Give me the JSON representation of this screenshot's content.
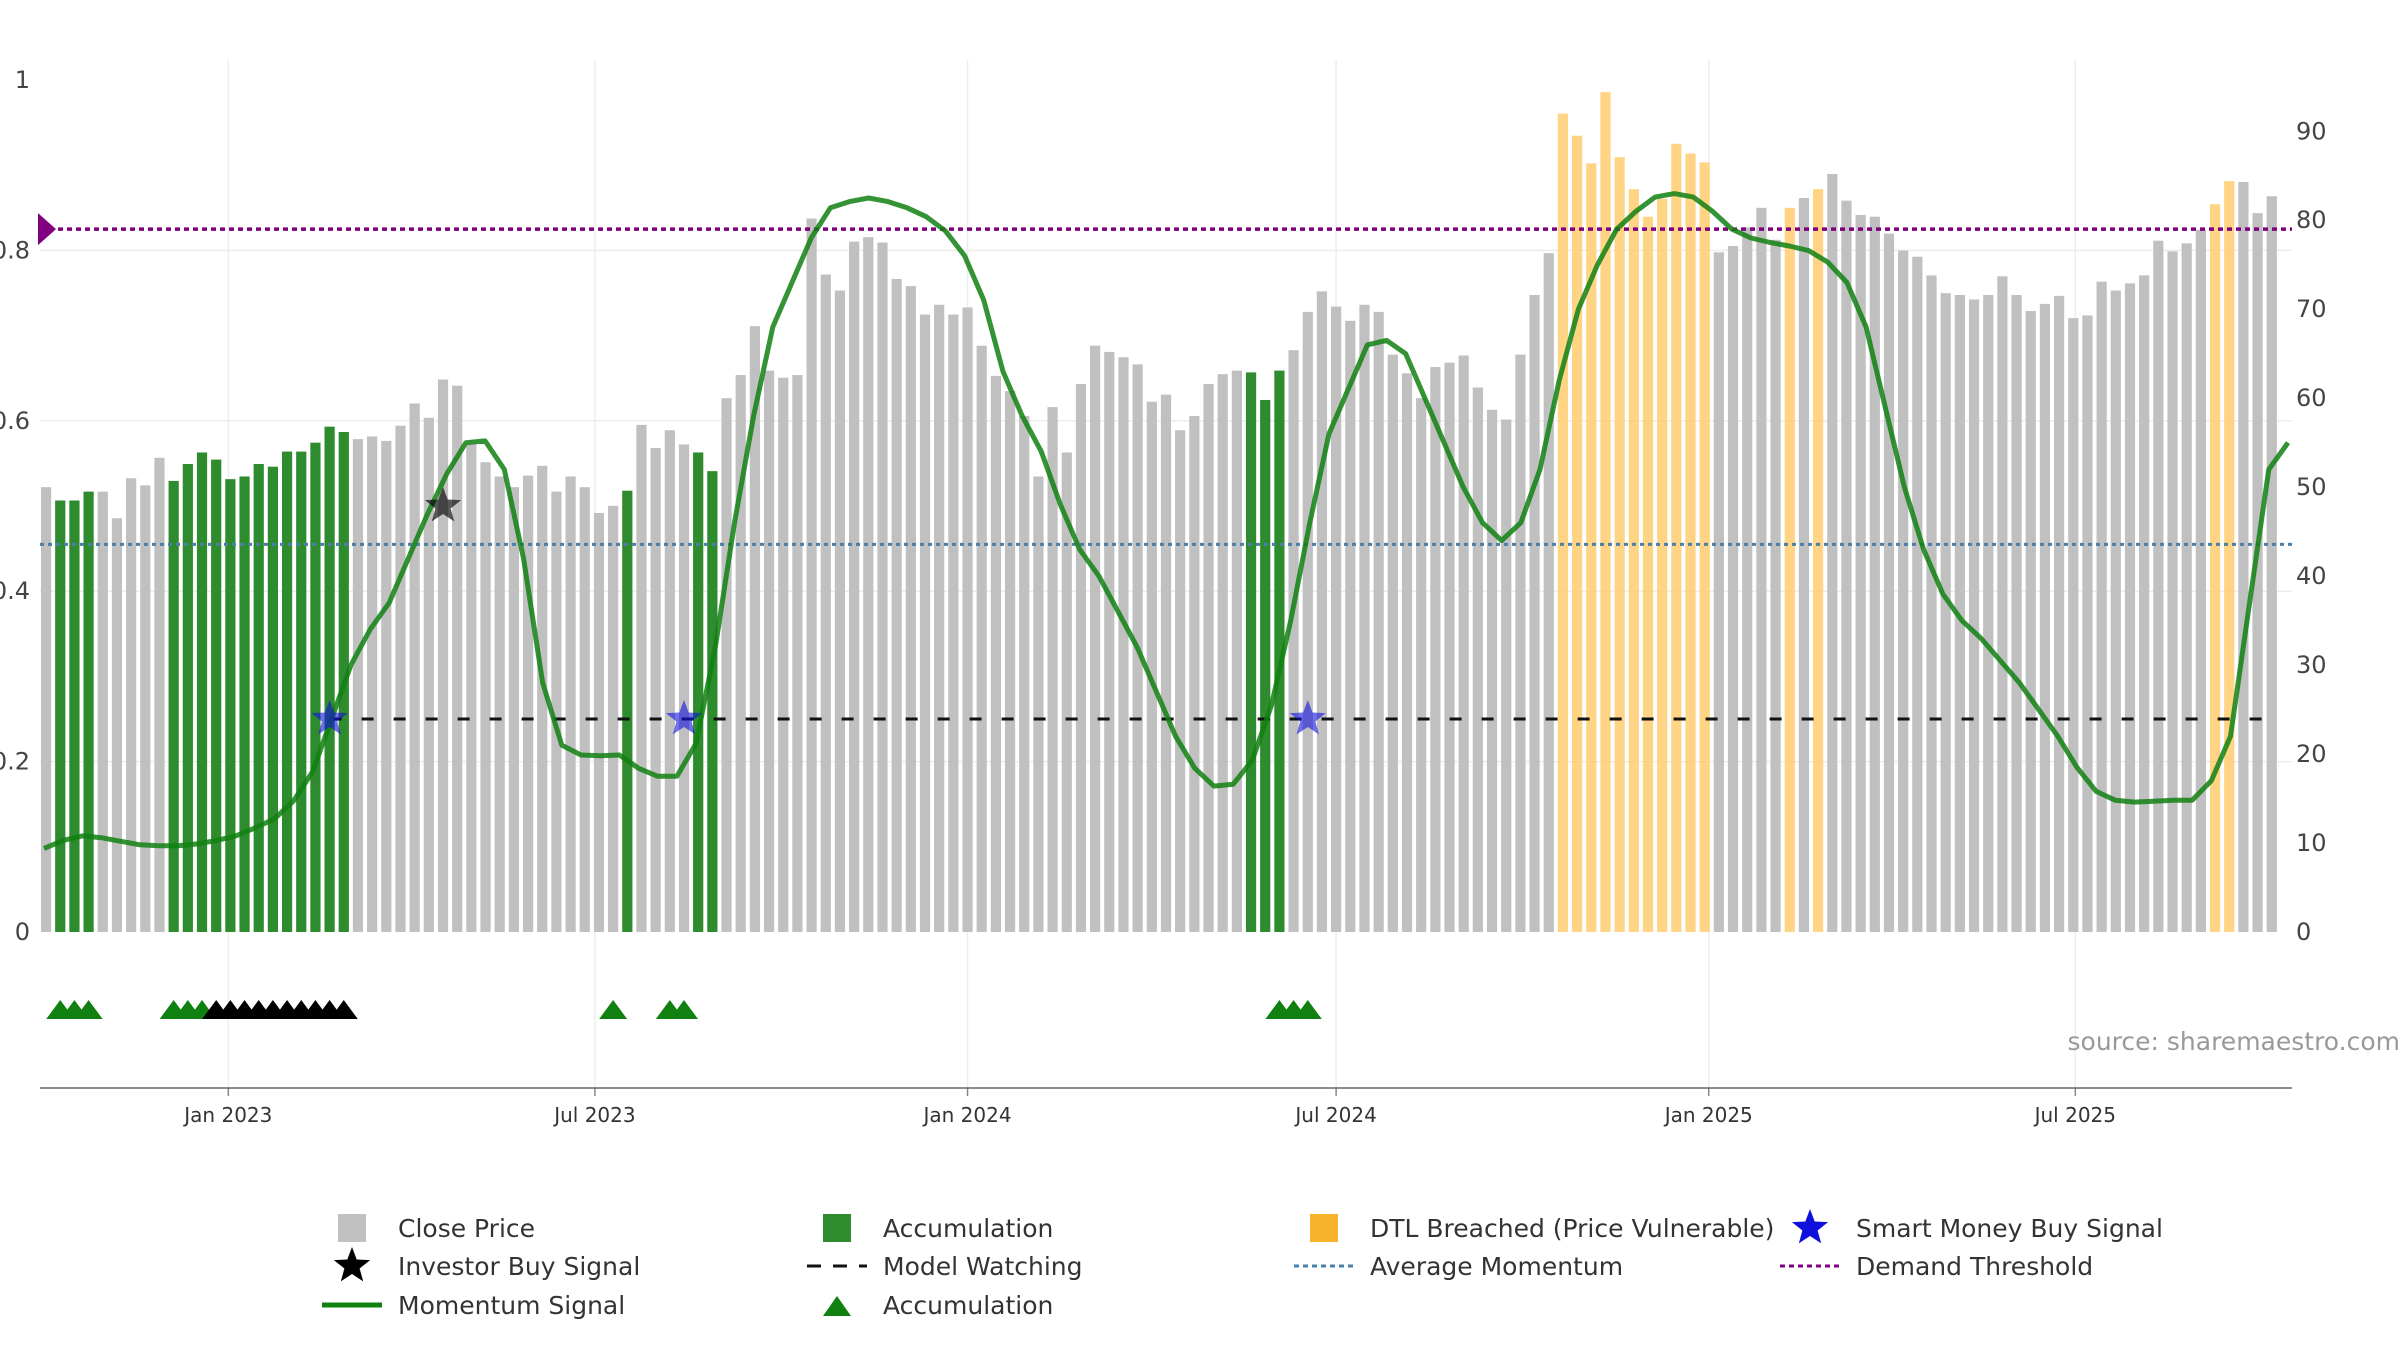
{
  "chart_data": {
    "type": "bar",
    "source_label": "source: sharemaestro.com",
    "x_ticks": [
      "Jan 2023",
      "Jul 2023",
      "Jan 2024",
      "Jul 2024",
      "Jan 2025",
      "Jul 2025"
    ],
    "left_axis": {
      "ylim": [
        0,
        1
      ],
      "ticks": [
        "0",
        "0.2",
        "0.4",
        "0.6",
        "0.8",
        "1"
      ]
    },
    "right_axis": {
      "ylim": [
        0,
        97
      ],
      "ticks": [
        "0",
        "10",
        "20",
        "30",
        "40",
        "50",
        "60",
        "70",
        "80",
        "90"
      ]
    },
    "demand_threshold": 0.825,
    "average_momentum": 0.455,
    "model_watching_level": 0.25,
    "colors": {
      "close_price": "#c0c0c0",
      "accumulation": "#2e8b2e",
      "dtl_breached": "#ffcc70",
      "momentum": "#108010",
      "average_momentum": "#4a7fa7",
      "demand_threshold": "#800080",
      "smart_money": "#1010dd",
      "investor": "#000000",
      "acc_triangle": "#108010"
    },
    "weeks": [
      "2022-10-03",
      "2022-10-10",
      "2022-10-17",
      "2022-10-24",
      "2022-10-31",
      "2022-11-07",
      "2022-11-14",
      "2022-11-21",
      "2022-11-28",
      "2022-12-05",
      "2022-12-12",
      "2022-12-19",
      "2022-12-26",
      "2023-01-02",
      "2023-01-09",
      "2023-01-16",
      "2023-01-23",
      "2023-01-30",
      "2023-02-06",
      "2023-02-13",
      "2023-02-20",
      "2023-02-27",
      "2023-03-06",
      "2023-03-13",
      "2023-03-20",
      "2023-03-27",
      "2023-04-03",
      "2023-04-10",
      "2023-04-17",
      "2023-04-24",
      "2023-05-01",
      "2023-05-08",
      "2023-05-15",
      "2023-05-22",
      "2023-05-29",
      "2023-06-05",
      "2023-06-12",
      "2023-06-19",
      "2023-06-26",
      "2023-07-03",
      "2023-07-10",
      "2023-07-17",
      "2023-07-24",
      "2023-07-31",
      "2023-08-07",
      "2023-08-14",
      "2023-08-21",
      "2023-08-28",
      "2023-09-04",
      "2023-09-11",
      "2023-09-18",
      "2023-09-25",
      "2023-10-02",
      "2023-10-09",
      "2023-10-16",
      "2023-10-23",
      "2023-10-30",
      "2023-11-06",
      "2023-11-13",
      "2023-11-20",
      "2023-11-27",
      "2023-12-04",
      "2023-12-11",
      "2023-12-18",
      "2023-12-25",
      "2024-01-01",
      "2024-01-08",
      "2024-01-15",
      "2024-01-22",
      "2024-01-29",
      "2024-02-05",
      "2024-02-12",
      "2024-02-19",
      "2024-02-26",
      "2024-03-04",
      "2024-03-11",
      "2024-03-18",
      "2024-03-25",
      "2024-04-01",
      "2024-04-08",
      "2024-04-15",
      "2024-04-22",
      "2024-04-29",
      "2024-05-06",
      "2024-05-13",
      "2024-05-20",
      "2024-05-27",
      "2024-06-03",
      "2024-06-10",
      "2024-06-17",
      "2024-06-24",
      "2024-07-01",
      "2024-07-08",
      "2024-07-15",
      "2024-07-22",
      "2024-07-29",
      "2024-08-05",
      "2024-08-12",
      "2024-08-19",
      "2024-08-26",
      "2024-09-02",
      "2024-09-09",
      "2024-09-16",
      "2024-09-23",
      "2024-09-30",
      "2024-10-07",
      "2024-10-14",
      "2024-10-21",
      "2024-10-28",
      "2024-11-04",
      "2024-11-11",
      "2024-11-18",
      "2024-11-25",
      "2024-12-02",
      "2024-12-09",
      "2024-12-16",
      "2024-12-23",
      "2024-12-30",
      "2025-01-06",
      "2025-01-13",
      "2025-01-20",
      "2025-01-27",
      "2025-02-03",
      "2025-02-10",
      "2025-02-17",
      "2025-02-24",
      "2025-03-03",
      "2025-03-10",
      "2025-03-17",
      "2025-03-24",
      "2025-03-31",
      "2025-04-07",
      "2025-04-14",
      "2025-04-21",
      "2025-04-28",
      "2025-05-05",
      "2025-05-12",
      "2025-05-19",
      "2025-05-26",
      "2025-06-02",
      "2025-06-09",
      "2025-06-16",
      "2025-06-23",
      "2025-06-30",
      "2025-07-07",
      "2025-07-14",
      "2025-07-21",
      "2025-07-28",
      "2025-08-04",
      "2025-08-11",
      "2025-08-18",
      "2025-08-25",
      "2025-09-01",
      "2025-09-08",
      "2025-09-15",
      "2025-09-22",
      "2025-09-29",
      "2025-10-06",
      "2025-10-13"
    ],
    "close_price": [
      50,
      48.5,
      48.5,
      49.5,
      49.5,
      46.5,
      51,
      50.2,
      53.3,
      50.7,
      52.6,
      53.9,
      53.1,
      50.9,
      51.2,
      52.6,
      52.3,
      54,
      54,
      55,
      56.8,
      56.2,
      55.4,
      55.7,
      55.2,
      56.9,
      59.4,
      57.8,
      62.1,
      61.4,
      54.8,
      52.8,
      51.2,
      50,
      51.3,
      52.4,
      49.5,
      51.2,
      50,
      47.1,
      47.9,
      49.6,
      57,
      54.4,
      56.4,
      54.8,
      53.9,
      51.8,
      60,
      62.6,
      68.1,
      63.1,
      62.3,
      62.6,
      80.2,
      73.9,
      72.1,
      77.6,
      78.1,
      77.5,
      73.4,
      72.6,
      69.4,
      70.5,
      69.4,
      70.2,
      65.9,
      62.5,
      60.8,
      58,
      51.2,
      59,
      53.9,
      61.6,
      65.9,
      65.2,
      64.6,
      63.8,
      59.6,
      60.4,
      56.4,
      58,
      61.6,
      62.7,
      63.1,
      62.9,
      59.8,
      63.1,
      65.4,
      69.7,
      72,
      70.3,
      68.7,
      70.5,
      69.7,
      64.9,
      62.8,
      60,
      63.5,
      64,
      64.8,
      61.2,
      58.7,
      57.6,
      64.9,
      71.6,
      76.3,
      92,
      89.5,
      86.4,
      94.4,
      87.1,
      83.5,
      80.4,
      82.4,
      88.6,
      87.5,
      86.5,
      76.4,
      77.1,
      79.2,
      81.4,
      77.8,
      81.4,
      82.5,
      83.5,
      85.2,
      82.2,
      80.6,
      80.4,
      78.5,
      76.6,
      75.9,
      73.8,
      71.8,
      71.6,
      71.1,
      71.6,
      73.7,
      71.6,
      69.8,
      70.6,
      71.5,
      69,
      69.3,
      73.1,
      72.1,
      72.9,
      73.8,
      77.7,
      76.5,
      77.4,
      78.9,
      81.8,
      84.4,
      84.3,
      80.8,
      82.7
    ],
    "bar_category": [
      "grey",
      "acc",
      "acc",
      "acc",
      "grey",
      "grey",
      "grey",
      "grey",
      "grey",
      "acc",
      "acc",
      "acc",
      "acc",
      "acc",
      "acc",
      "acc",
      "acc",
      "acc",
      "acc",
      "acc",
      "acc",
      "acc",
      "grey",
      "grey",
      "grey",
      "grey",
      "grey",
      "grey",
      "grey",
      "grey",
      "grey",
      "grey",
      "grey",
      "grey",
      "grey",
      "grey",
      "grey",
      "grey",
      "grey",
      "grey",
      "grey",
      "acc",
      "grey",
      "grey",
      "grey",
      "grey",
      "acc",
      "acc",
      "grey",
      "grey",
      "grey",
      "grey",
      "grey",
      "grey",
      "grey",
      "grey",
      "grey",
      "grey",
      "grey",
      "grey",
      "grey",
      "grey",
      "grey",
      "grey",
      "grey",
      "grey",
      "grey",
      "grey",
      "grey",
      "grey",
      "grey",
      "grey",
      "grey",
      "grey",
      "grey",
      "grey",
      "grey",
      "grey",
      "grey",
      "grey",
      "grey",
      "grey",
      "grey",
      "grey",
      "grey",
      "acc",
      "acc",
      "acc",
      "grey",
      "grey",
      "grey",
      "grey",
      "grey",
      "grey",
      "grey",
      "grey",
      "grey",
      "grey",
      "grey",
      "grey",
      "grey",
      "grey",
      "grey",
      "grey",
      "grey",
      "grey",
      "grey",
      "dtl",
      "dtl",
      "dtl",
      "dtl",
      "dtl",
      "dtl",
      "dtl",
      "dtl",
      "dtl",
      "dtl",
      "dtl",
      "grey",
      "grey",
      "grey",
      "grey",
      "grey",
      "dtl",
      "grey",
      "dtl",
      "grey",
      "grey",
      "grey",
      "grey",
      "grey",
      "grey",
      "grey",
      "grey",
      "grey",
      "grey",
      "grey",
      "grey",
      "grey",
      "grey",
      "grey",
      "grey",
      "grey",
      "grey",
      "grey",
      "grey",
      "grey",
      "grey",
      "grey",
      "grey",
      "grey",
      "grey",
      "grey",
      "dtl",
      "dtl",
      "grey",
      "grey"
    ],
    "momentum": [
      9.4,
      10.3,
      10.8,
      10.6,
      10.2,
      9.8,
      9.7,
      9.7,
      9.9,
      10.3,
      10.8,
      11.7,
      12.7,
      14.7,
      18,
      24,
      30,
      34,
      37,
      42,
      47,
      51.5,
      55,
      55.2,
      52,
      42,
      28,
      21,
      19.9,
      19.8,
      19.9,
      18.4,
      17.5,
      17.5,
      21.2,
      32,
      46,
      58,
      68,
      73,
      78,
      81.4,
      82.1,
      82.5,
      82.1,
      81.4,
      80.4,
      78.8,
      76,
      71,
      63,
      58,
      54,
      48,
      43,
      40,
      36,
      32,
      27,
      22,
      18.4,
      16.4,
      16.6,
      19.3,
      25.5,
      35,
      46,
      56,
      61,
      66,
      66.5,
      65,
      60,
      55,
      50,
      46,
      44,
      46,
      52,
      62,
      70,
      75,
      79,
      81,
      82.6,
      83,
      82.6,
      81,
      79,
      78,
      77.5,
      77.1,
      76.6,
      75.3,
      73,
      68,
      59,
      50,
      43,
      38,
      35,
      33,
      30.5,
      28,
      25,
      22,
      18.5,
      15.8,
      14.8,
      14.6,
      14.7,
      14.8,
      14.8,
      17,
      22,
      37,
      52,
      55
    ],
    "momentum_x_scale_note": "",
    "smart_money_signals": [
      "2023-02-20",
      "2023-08-14",
      "2024-06-17"
    ],
    "investor_signals": [
      "2023-04-17"
    ],
    "acc_triangles_green": [
      "2022-10-10",
      "2022-10-17",
      "2022-10-24",
      "2022-12-05",
      "2022-12-12",
      "2022-12-19",
      "2023-07-10",
      "2023-08-07",
      "2023-08-14",
      "2024-06-03",
      "2024-06-10",
      "2024-06-17"
    ],
    "acc_triangles_black": [
      "2022-12-26",
      "2023-01-02",
      "2023-01-09",
      "2023-01-16",
      "2023-01-23",
      "2023-01-30",
      "2023-02-06",
      "2023-02-13",
      "2023-02-20",
      "2023-02-27"
    ],
    "legend": [
      {
        "key": "close",
        "label": "Close Price"
      },
      {
        "key": "acc",
        "label": "Accumulation"
      },
      {
        "key": "dtl",
        "label": "DTL Breached (Price Vulnerable)"
      },
      {
        "key": "smart",
        "label": "Smart Money Buy Signal"
      },
      {
        "key": "investor",
        "label": "Investor Buy Signal"
      },
      {
        "key": "watch",
        "label": "Model Watching"
      },
      {
        "key": "avgmom",
        "label": "Average Momentum"
      },
      {
        "key": "demand",
        "label": "Demand Threshold"
      },
      {
        "key": "momentum",
        "label": "Momentum Signal"
      },
      {
        "key": "acctri",
        "label": "Accumulation"
      }
    ]
  }
}
